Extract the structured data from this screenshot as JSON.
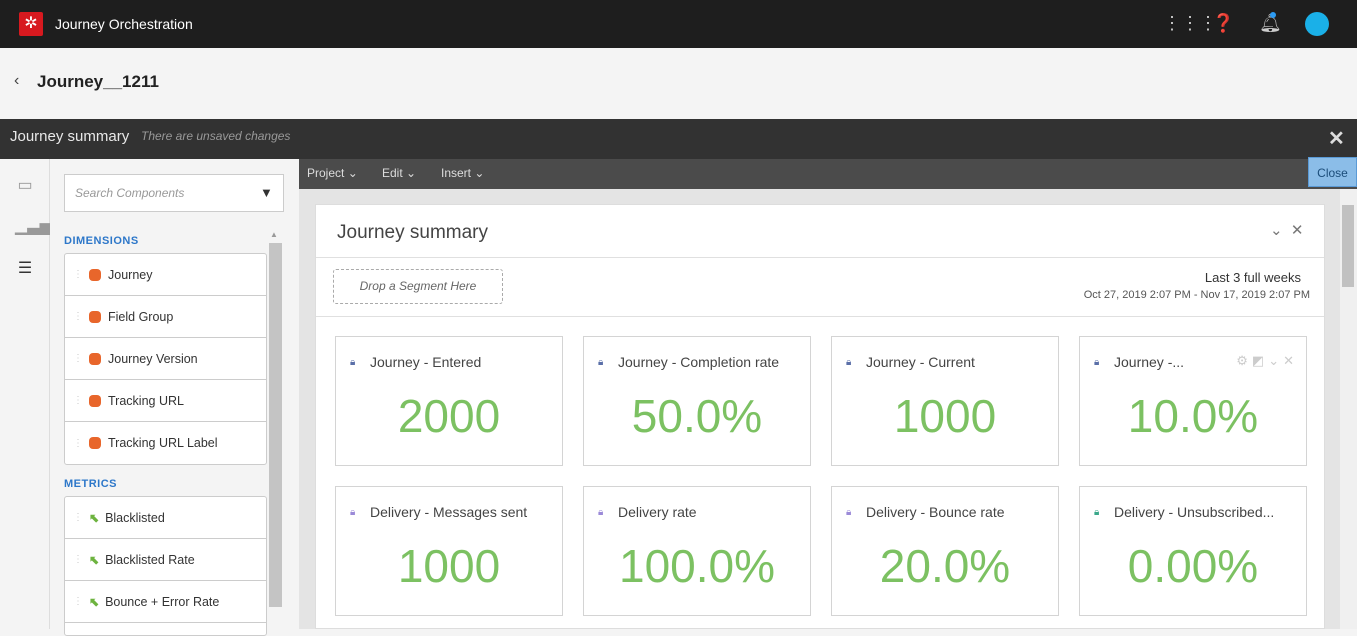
{
  "app": {
    "title": "Journey Orchestration",
    "logo_icon": "adobe-journey-logo"
  },
  "header": {
    "journey_name": "Journey__1211"
  },
  "summary_bar": {
    "title": "Journey summary",
    "status": "There are unsaved changes"
  },
  "components": {
    "search_placeholder": "Search Components",
    "dimensions_label": "DIMENSIONS",
    "dimensions": [
      "Journey",
      "Field Group",
      "Journey Version",
      "Tracking URL",
      "Tracking URL Label"
    ],
    "metrics_label": "METRICS",
    "metrics": [
      "Blacklisted",
      "Blacklisted Rate",
      "Bounce + Error Rate"
    ]
  },
  "menu": {
    "items": [
      "Project",
      "Edit",
      "Insert"
    ],
    "close_label": "Close"
  },
  "panel": {
    "title": "Journey summary",
    "segment_drop": "Drop a Segment Here",
    "range_label": "Last 3 full weeks",
    "range_dates": "Oct 27, 2019 2:07 PM - Nov 17, 2019 2:07 PM"
  },
  "kpis": [
    {
      "name": "Journey - Entered",
      "value": "2000",
      "lock_color": "#5a6fa8"
    },
    {
      "name": "Journey - Completion rate",
      "value": "50.0%",
      "lock_color": "#5a6fa8"
    },
    {
      "name": "Journey - Current",
      "value": "1000",
      "lock_color": "#5a6fa8"
    },
    {
      "name": "Journey -...",
      "value": "10.0%",
      "lock_color": "#5a6fa8"
    },
    {
      "name": "Delivery - Messages sent",
      "value": "1000",
      "lock_color": "#9b8ad8"
    },
    {
      "name": "Delivery rate",
      "value": "100.0%",
      "lock_color": "#9b8ad8"
    },
    {
      "name": "Delivery - Bounce rate",
      "value": "20.0%",
      "lock_color": "#9b8ad8"
    },
    {
      "name": "Delivery - Unsubscribed...",
      "value": "0.00%",
      "lock_color": "#3aa88a"
    }
  ],
  "colors": {
    "value_green": "#7cc162",
    "accent_blue": "#2d77c9"
  }
}
